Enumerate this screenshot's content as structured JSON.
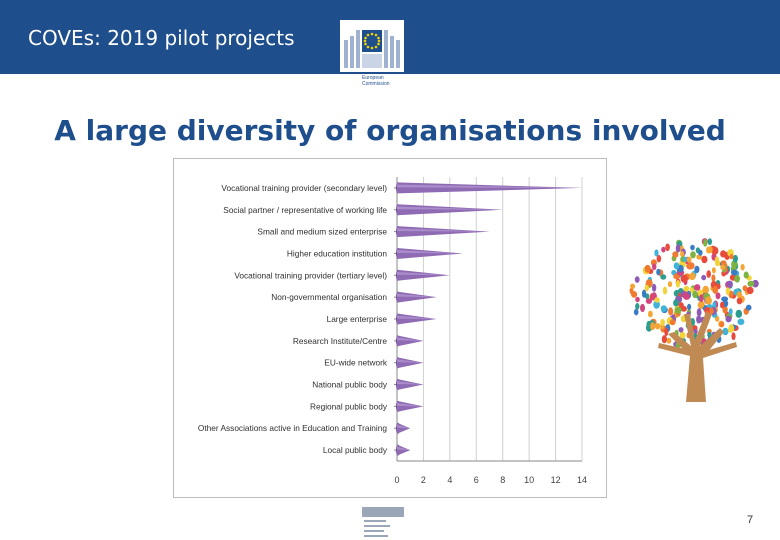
{
  "header": {
    "title": "COVEs: 2019 pilot projects",
    "logo_text": [
      "European",
      "Commission"
    ],
    "logo_color": "#1f4e8c",
    "background_color": "#1f4e8c"
  },
  "slide": {
    "title": "A large diversity of organisations involved",
    "page_number": "7"
  },
  "chart_data": {
    "type": "bar",
    "categories": [
      "Vocational training provider (secondary level)",
      "Social partner / representative of working life",
      "Small and medium sized enterprise",
      "Higher education institution",
      "Vocational training provider (tertiary level)",
      "Non-governmental organisation",
      "Large enterprise",
      "Research Institute/Centre",
      "EU-wide network",
      "National public body",
      "Regional public body",
      "Other Associations active in Education and Training",
      "Local public body"
    ],
    "values": [
      14,
      8,
      7,
      5,
      4,
      3,
      3,
      2,
      2,
      2,
      2,
      1,
      1
    ],
    "x_ticks": [
      0,
      2,
      4,
      6,
      8,
      10,
      12,
      14
    ],
    "xlim": [
      0,
      14
    ],
    "orientation": "horizontal",
    "grid": true,
    "bar_color": "#8e6bb3"
  }
}
